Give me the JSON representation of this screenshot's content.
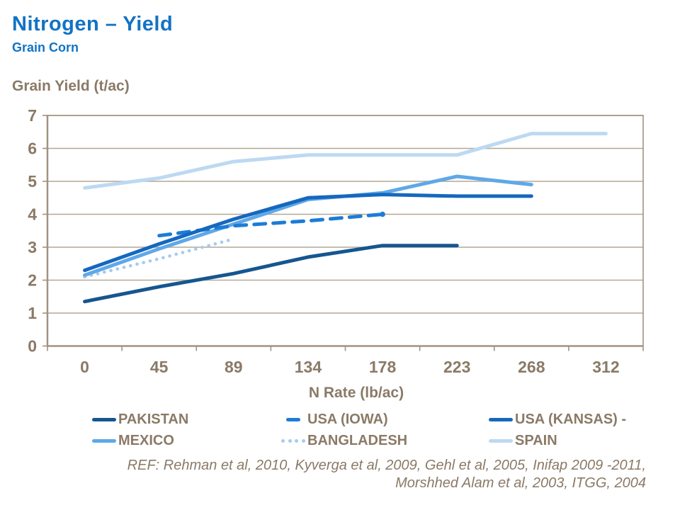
{
  "header": {
    "title": "Nitrogen – Yield",
    "subtitle": "Grain Corn"
  },
  "chart_data": {
    "type": "line",
    "title": "",
    "ylabel": "Grain Yield (t/ac)",
    "xlabel": "N Rate (lb/ac)",
    "categories": [
      "0",
      "45",
      "89",
      "134",
      "178",
      "223",
      "268",
      "312"
    ],
    "ylim": [
      0,
      7
    ],
    "yticks": [
      0,
      1,
      2,
      3,
      4,
      5,
      6,
      7
    ],
    "grid": "horizontal",
    "legend_position": "bottom",
    "series": [
      {
        "name": "PAKISTAN",
        "color": "#15568F",
        "style": "solid",
        "values": [
          1.35,
          1.8,
          2.2,
          2.7,
          3.05,
          3.05,
          null,
          null
        ]
      },
      {
        "name": "USA (IOWA)",
        "color": "#1C7CD8",
        "style": "dashed",
        "end_marker": true,
        "values": [
          null,
          3.35,
          3.65,
          3.8,
          4.0,
          null,
          null,
          null
        ]
      },
      {
        "name": "USA (KANSAS) -",
        "color": "#1568BE",
        "style": "solid",
        "values": [
          2.3,
          3.1,
          3.85,
          4.5,
          4.6,
          4.55,
          4.55,
          null
        ]
      },
      {
        "name": "MEXICO",
        "color": "#5FA8E8",
        "style": "solid",
        "values": [
          2.15,
          2.95,
          3.7,
          4.45,
          4.65,
          5.15,
          4.9,
          null
        ]
      },
      {
        "name": "BANGLADESH",
        "color": "#A6CBEE",
        "style": "dotted",
        "values": [
          2.1,
          2.65,
          3.25,
          null,
          null,
          null,
          null,
          null
        ]
      },
      {
        "name": "SPAIN",
        "color": "#BDD9F2",
        "style": "solid",
        "values": [
          4.8,
          5.1,
          5.6,
          5.8,
          5.8,
          5.8,
          6.45,
          6.45
        ]
      }
    ]
  },
  "footer": {
    "ref_line1": "REF: Rehman et al, 2010, Kyverga et al, 2009, Gehl et al, 2005, Inifap 2009 -2011,",
    "ref_line2": "Morshhed Alam et al, 2003, ITGG, 2004"
  },
  "colors": {
    "title_blue": "#1273C4",
    "text_brown": "#8A7A66",
    "axis": "#A1937F",
    "grid": "#B3A795"
  }
}
